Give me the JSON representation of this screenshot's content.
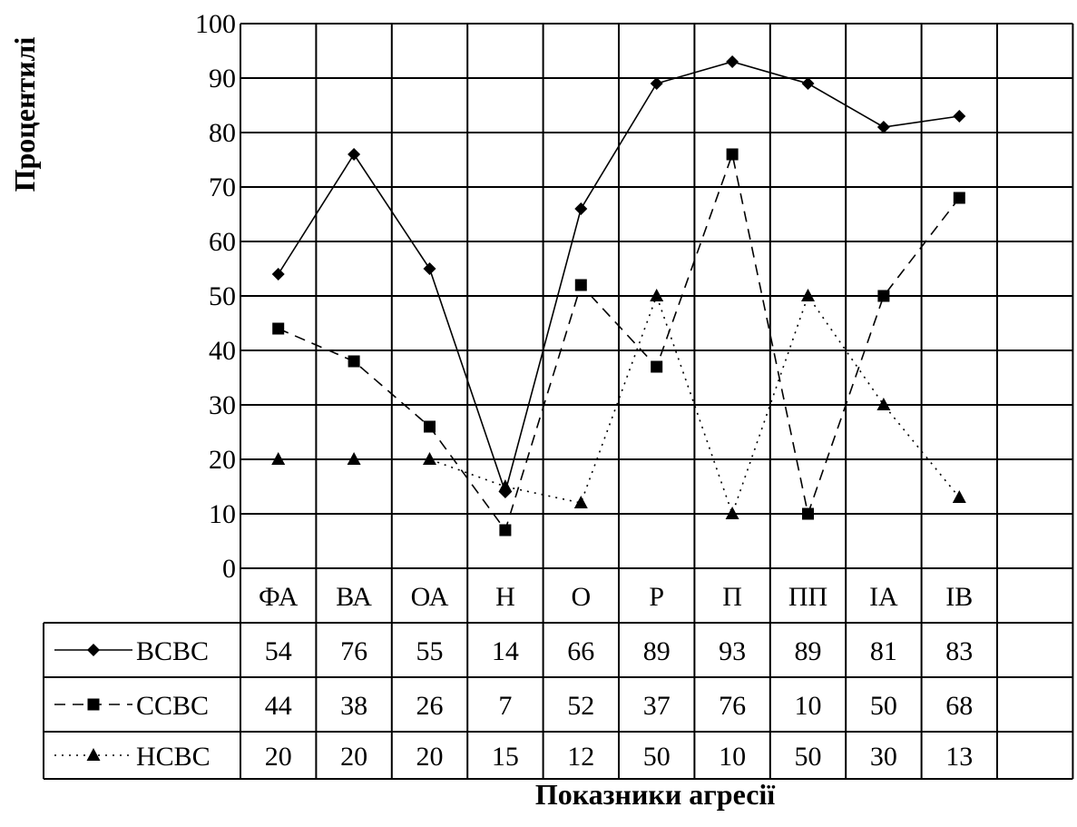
{
  "chart_data": {
    "type": "line",
    "ylabel": "Процентилі",
    "xlabel": "Показники агресії",
    "categories": [
      "ФА",
      "ВА",
      "ОА",
      "Н",
      "О",
      "Р",
      "П",
      "ПП",
      "ІА",
      "ІВ"
    ],
    "ylim": [
      0,
      100
    ],
    "yticks": [
      0,
      10,
      20,
      30,
      40,
      50,
      60,
      70,
      80,
      90,
      100
    ],
    "grid": true,
    "legend": "data-table-left",
    "series": [
      {
        "name": "ВСВС",
        "values": [
          54,
          76,
          55,
          14,
          66,
          89,
          93,
          89,
          81,
          83
        ],
        "marker": "diamond",
        "line_style": "solid"
      },
      {
        "name": "ССВС",
        "values": [
          44,
          38,
          26,
          7,
          52,
          37,
          76,
          10,
          50,
          68
        ],
        "marker": "square",
        "line_style": "dashed"
      },
      {
        "name": "НСВС",
        "values": [
          20,
          20,
          20,
          15,
          12,
          50,
          10,
          50,
          30,
          13
        ],
        "marker": "triangle",
        "line_style": "dotted"
      }
    ],
    "colors": {
      "line": "#000000",
      "grid": "#000000",
      "background": "#ffffff"
    }
  }
}
